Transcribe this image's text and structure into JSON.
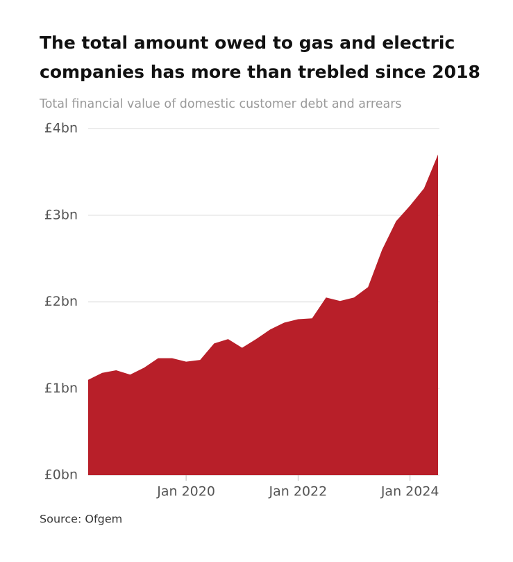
{
  "chart_data": {
    "type": "area",
    "title": [
      "The total amount owed to gas and electric",
      "companies has more than trebled since 2018"
    ],
    "subtitle": "Total financial value of domestic customer debt and arrears",
    "source": "Source: Ofgem",
    "x": [
      2018.25,
      2018.5,
      2018.75,
      2019,
      2019.25,
      2019.5,
      2019.75,
      2020,
      2020.25,
      2020.5,
      2020.75,
      2021,
      2021.25,
      2021.5,
      2021.75,
      2022,
      2022.25,
      2022.5,
      2022.75,
      2023,
      2023.25,
      2023.5,
      2023.75,
      2024,
      2024.25,
      2024.5
    ],
    "series": [
      {
        "name": "Domestic customer debt and arrears",
        "color": "#b81f29",
        "values": [
          1.1,
          1.18,
          1.21,
          1.16,
          1.24,
          1.35,
          1.35,
          1.31,
          1.33,
          1.52,
          1.57,
          1.47,
          1.57,
          1.68,
          1.76,
          1.8,
          1.81,
          2.05,
          2.01,
          2.05,
          2.17,
          2.6,
          2.93,
          3.11,
          3.31,
          3.7
        ]
      }
    ],
    "xlim": [
      2018.25,
      2024.5
    ],
    "xticks": [
      {
        "value": 2020,
        "label": "Jan 2020"
      },
      {
        "value": 2022,
        "label": "Jan 2022"
      },
      {
        "value": 2024,
        "label": "Jan 2024"
      }
    ],
    "ylim": [
      0,
      4
    ],
    "yticks": [
      {
        "value": 0,
        "label": "£0bn"
      },
      {
        "value": 1,
        "label": "£1bn"
      },
      {
        "value": 2,
        "label": "£2bn"
      },
      {
        "value": 3,
        "label": "£3bn"
      },
      {
        "value": 4,
        "label": "£4bn"
      }
    ],
    "grid": true
  }
}
